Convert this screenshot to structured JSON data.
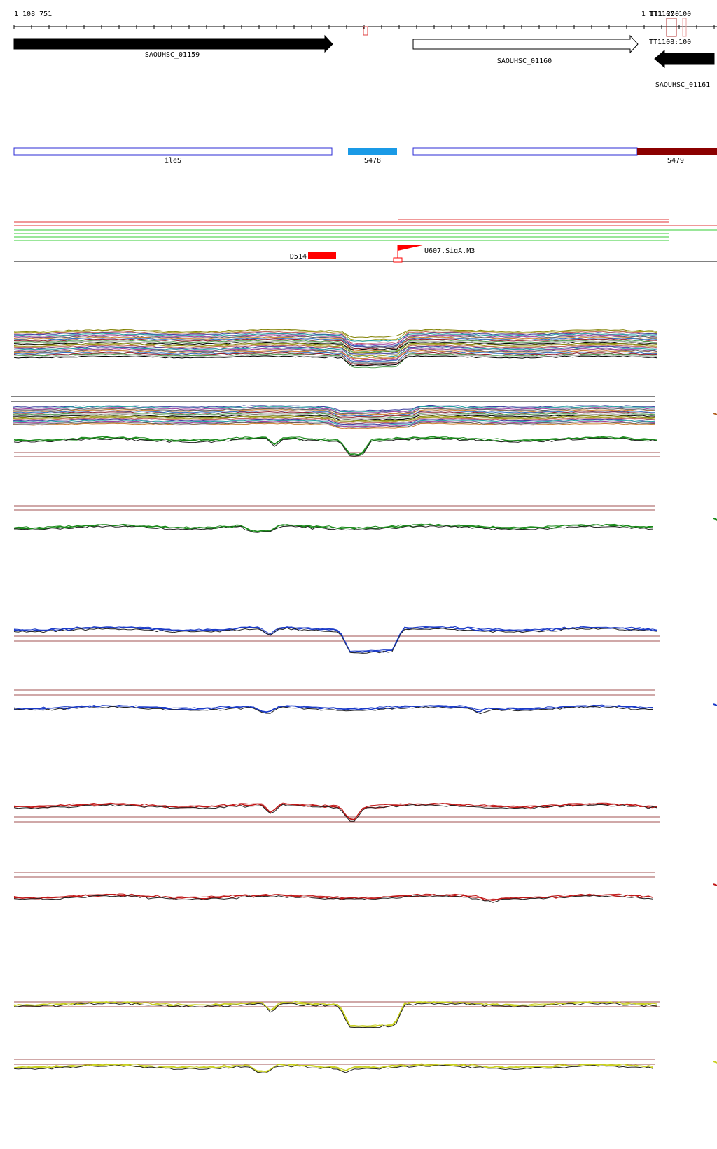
{
  "ruler": {
    "start_label": "1 108 751",
    "end_label": "1 111 250",
    "terminator_labels": [
      "TT1107:100",
      "TT1108:100"
    ]
  },
  "genes": [
    {
      "label": "SAOUHSC_01159",
      "strand": "forward",
      "fill": "#000000"
    },
    {
      "label": "SAOUHSC_01160",
      "strand": "forward",
      "fill": "#ffffff"
    },
    {
      "label": "SAOUHSC_01161",
      "strand": "reverse",
      "fill": "#000000"
    }
  ],
  "segments": [
    {
      "label": "ileS",
      "color": "#2b2bd6",
      "filled": false
    },
    {
      "label": "S478",
      "color": "#1a9ae6",
      "filled": true
    },
    {
      "label": "S479",
      "color": "#8b0000",
      "filled": true
    }
  ],
  "features": [
    {
      "label": "D514",
      "color": "#ff0000"
    },
    {
      "label": "U607.SigA.M3",
      "color": "#ff0000"
    }
  ],
  "colors": {
    "red_line": "#e03030",
    "green_line": "#33cc33",
    "threshold": "#a05050",
    "green_track": "#1a8a1a",
    "blue_track": "#1a3ac8",
    "red_track": "#c01818",
    "yellow_track": "#c8d020",
    "black_track": "#222222"
  }
}
